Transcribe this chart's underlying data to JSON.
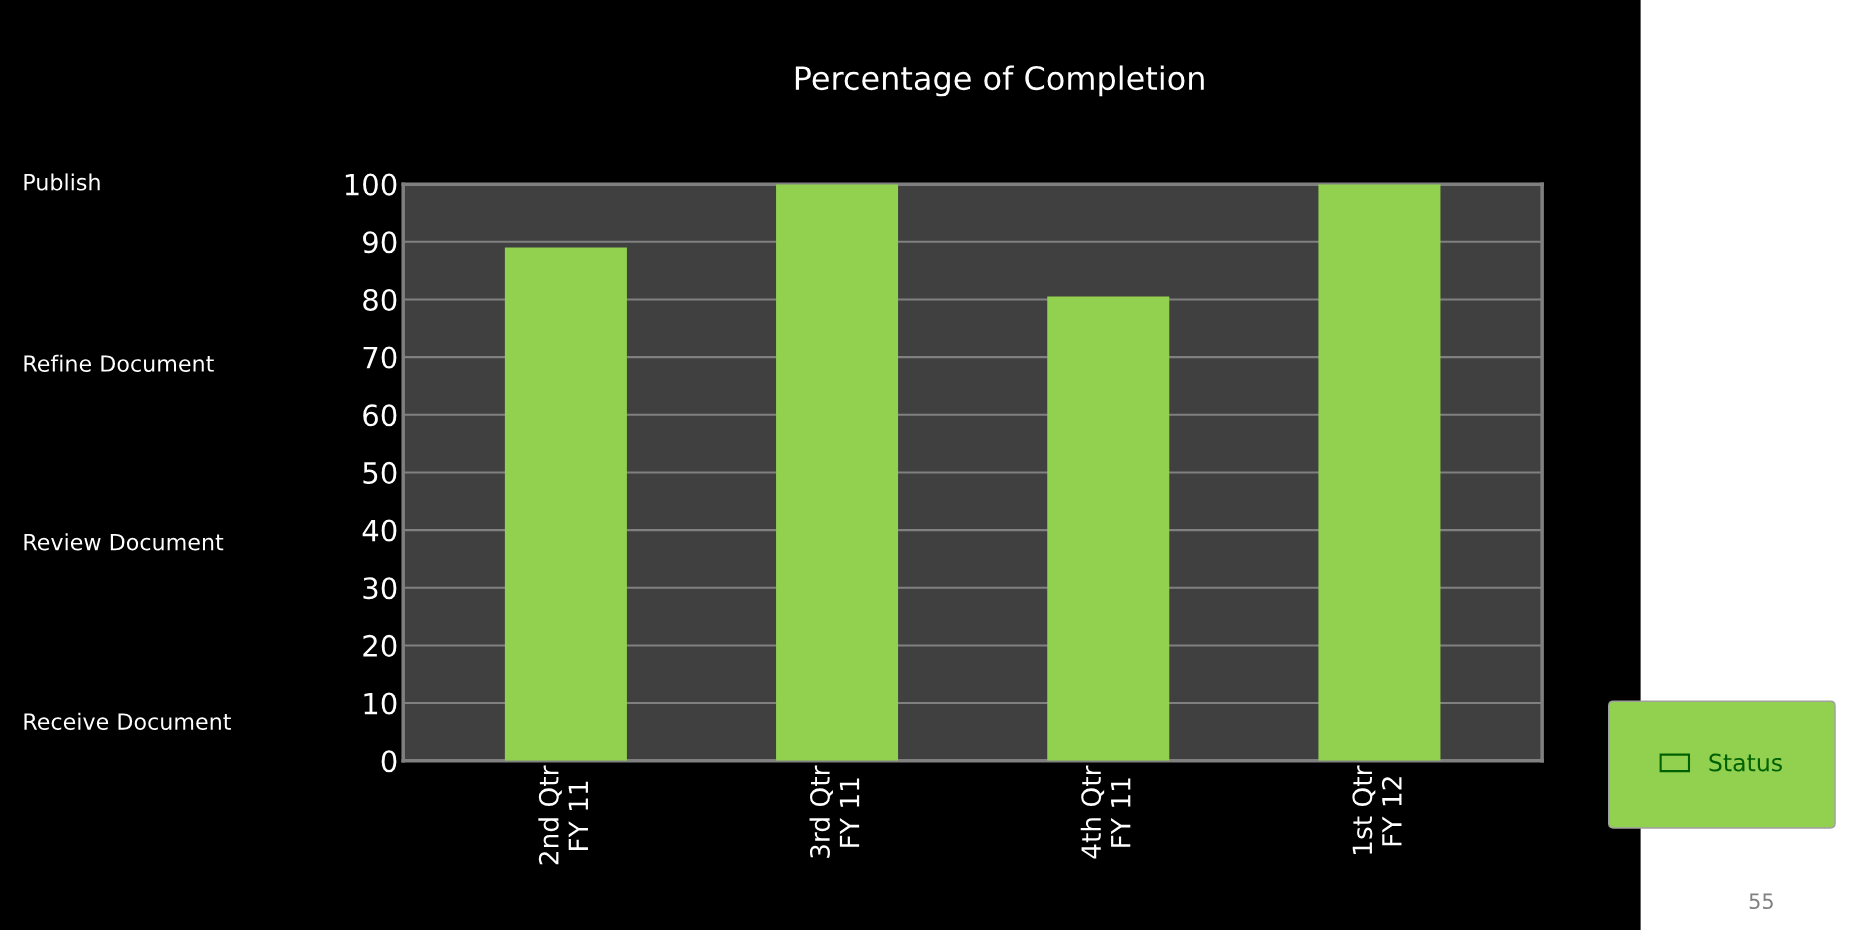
{
  "chart_data": {
    "type": "bar",
    "title": "Percentage of Completion",
    "categories": [
      "2nd Qtr\nFY 11",
      "3rd Qtr\nFY 11",
      "4th Qtr\nFY 11",
      "1st Qtr\nFY 12"
    ],
    "series": [
      {
        "name": "Status",
        "color": "#92d050",
        "values": [
          89,
          100,
          80.5,
          100
        ]
      }
    ],
    "ylim": [
      0,
      100
    ],
    "yticks": [
      0,
      10,
      20,
      30,
      40,
      50,
      60,
      70,
      80,
      90,
      100
    ],
    "grid": "y",
    "legend": "bottom right",
    "annotations": [
      "Publish",
      "Refine Document",
      "Review Document",
      "Receive Document",
      "55"
    ]
  }
}
